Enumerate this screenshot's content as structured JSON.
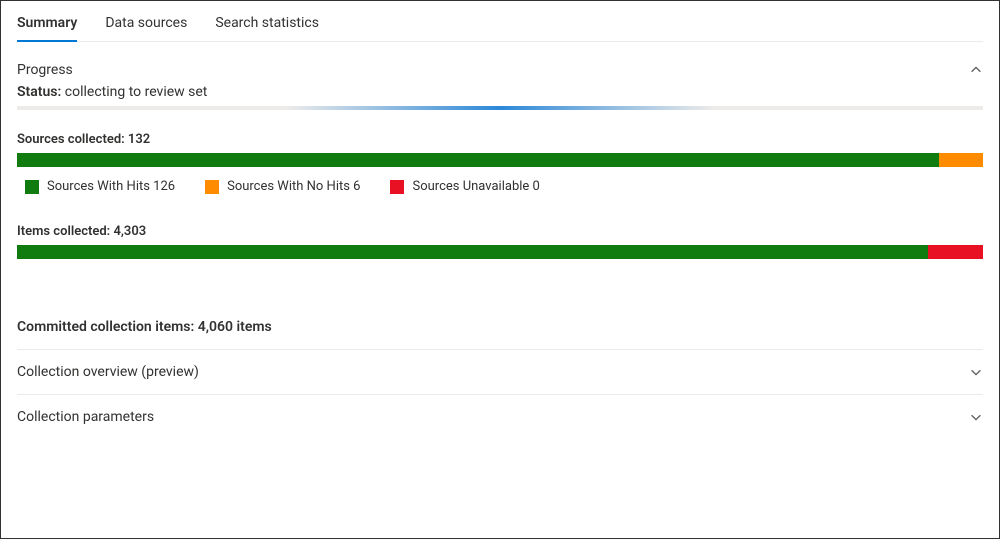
{
  "tabs": [
    {
      "label": "Summary",
      "active": true
    },
    {
      "label": "Data sources",
      "active": false
    },
    {
      "label": "Search statistics",
      "active": false
    }
  ],
  "progress": {
    "title": "Progress",
    "expanded": true,
    "status_label": "Status:",
    "status_value": "collecting to review set",
    "indeterminate": true,
    "track_color": "#edebe9",
    "accent_color": "#2b88d8"
  },
  "sources": {
    "label_prefix": "Sources collected:",
    "total_text": "132",
    "segments": [
      {
        "key": "with_hits",
        "value": 126,
        "color": "#107c10",
        "legend": "Sources With Hits 126"
      },
      {
        "key": "no_hits",
        "value": 6,
        "color": "#ff8c00",
        "legend": "Sources With No Hits 6"
      },
      {
        "key": "unavailable",
        "value": 0,
        "color": "#e81123",
        "legend": "Sources Unavailable 0"
      }
    ],
    "total": 132
  },
  "items": {
    "label_prefix": "Items collected:",
    "total_text": "4,303",
    "segments": [
      {
        "key": "collected",
        "value": 4060,
        "color": "#107c10"
      },
      {
        "key": "failed",
        "value": 243,
        "color": "#e81123"
      }
    ],
    "total": 4303
  },
  "committed": {
    "label": "Committed collection items:",
    "value_text": "4,060 items"
  },
  "collapsed_sections": [
    {
      "title": "Collection overview (preview)"
    },
    {
      "title": "Collection parameters"
    }
  ]
}
